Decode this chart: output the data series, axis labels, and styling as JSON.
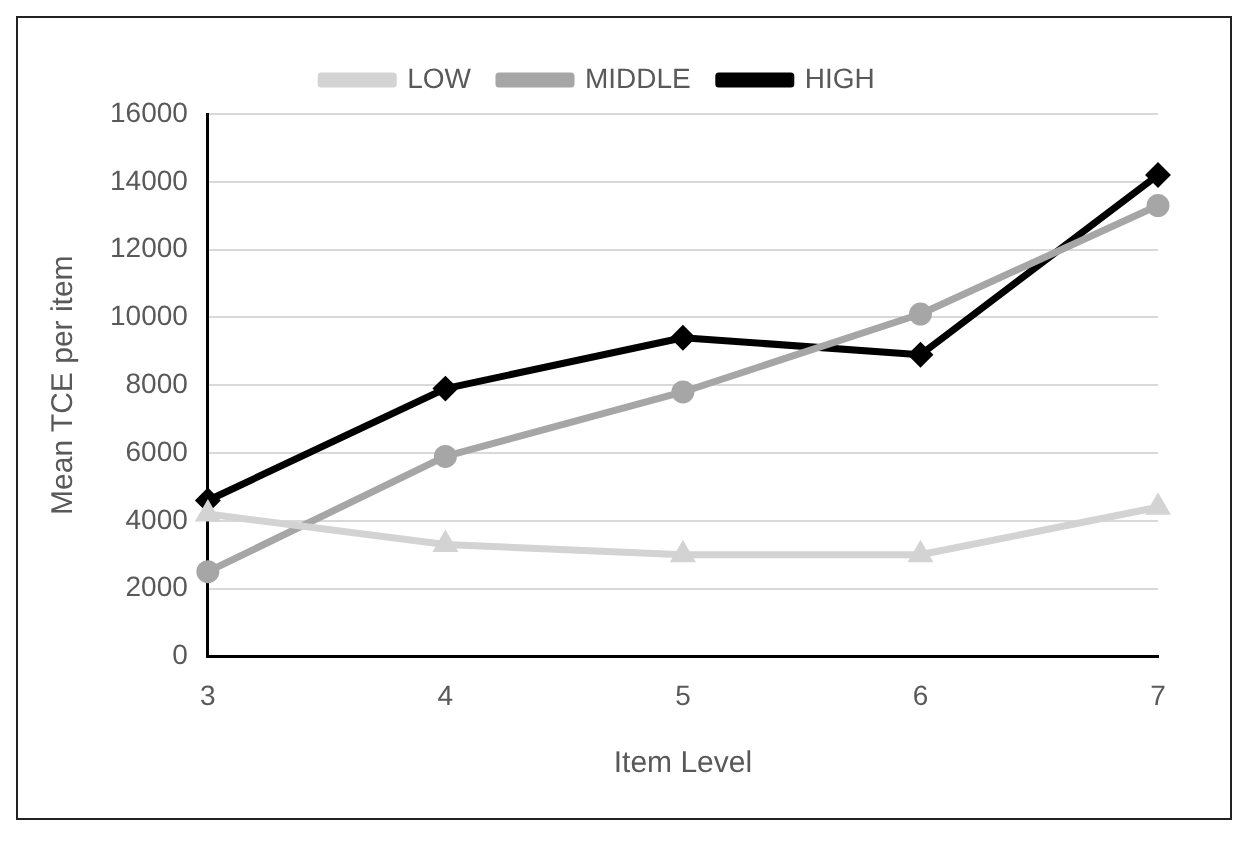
{
  "chart_data": {
    "type": "line",
    "xlabel": "Item Level",
    "ylabel": "Mean TCE per item",
    "categories": [
      "3",
      "4",
      "5",
      "6",
      "7"
    ],
    "series": [
      {
        "name": "LOW",
        "color": "#d3d3d3",
        "marker": "triangle",
        "values": [
          4200,
          3300,
          3000,
          3000,
          4400
        ]
      },
      {
        "name": "MIDDLE",
        "color": "#a6a6a6",
        "marker": "circle",
        "values": [
          2500,
          5900,
          7800,
          10100,
          13300
        ]
      },
      {
        "name": "HIGH",
        "color": "#000000",
        "marker": "diamond",
        "values": [
          4600,
          7900,
          9400,
          8900,
          14200
        ]
      }
    ],
    "ylim": [
      0,
      16000
    ],
    "yticks": [
      0,
      2000,
      4000,
      6000,
      8000,
      10000,
      12000,
      14000,
      16000
    ],
    "grid": "y",
    "legend": "top"
  }
}
